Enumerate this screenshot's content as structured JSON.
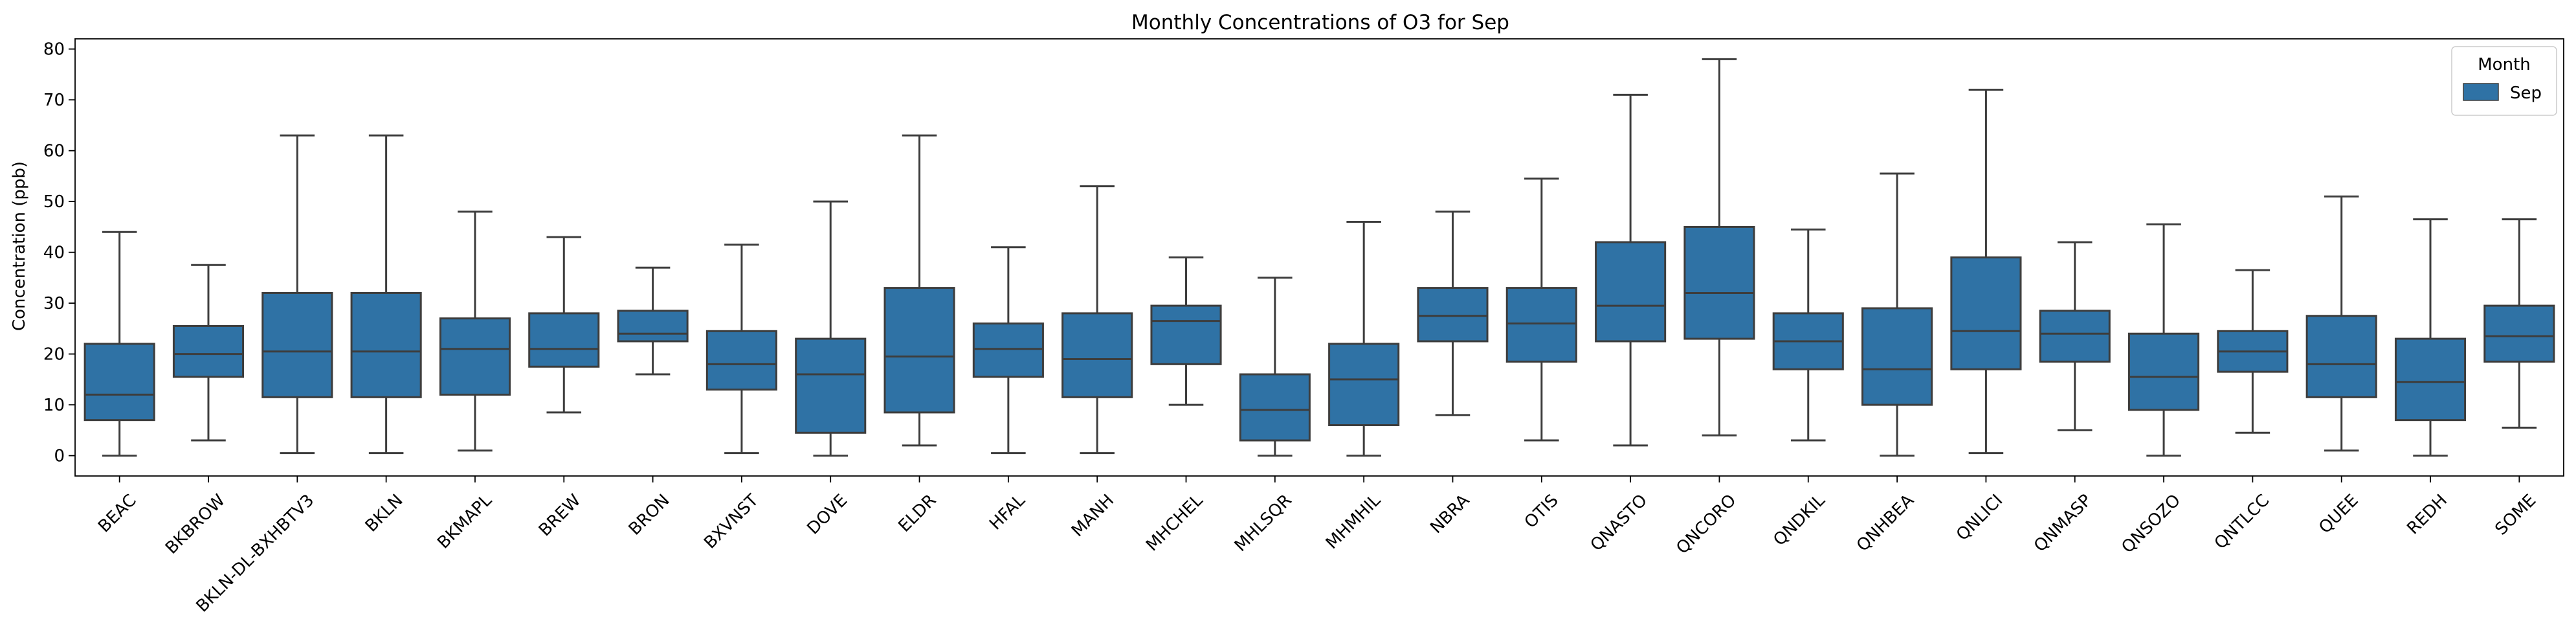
{
  "chart_data": {
    "type": "box",
    "title": "Monthly Concentrations of O3 for Sep",
    "xlabel": "",
    "ylabel": "Concentration (ppb)",
    "ylim": [
      -4,
      82
    ],
    "yticks": [
      0,
      10,
      20,
      30,
      40,
      50,
      60,
      70,
      80
    ],
    "grid": false,
    "legend": {
      "title": "Month",
      "entries": [
        "Sep"
      ],
      "placement": "top-right"
    },
    "colors": {
      "box": "#2f72a5",
      "line": "#3d3d3d",
      "axis": "#000000"
    },
    "categories": [
      "BEAC",
      "BKBROW",
      "BKLN-DL-BXHBTV3",
      "BKLN",
      "BKMAPL",
      "BREW",
      "BRON",
      "BXVNST",
      "DOVE",
      "ELDR",
      "HFAL",
      "MANH",
      "MHCHEL",
      "MHLSQR",
      "MHMHIL",
      "NBRA",
      "OTIS",
      "QNASTO",
      "QNCORO",
      "QNDKIL",
      "QNHBEA",
      "QNLICI",
      "QNMASP",
      "QNSOZO",
      "QNTLCC",
      "QUEE",
      "REDH",
      "SOME"
    ],
    "series": [
      {
        "name": "Sep",
        "boxes": [
          {
            "min": 0,
            "q1": 7,
            "median": 12,
            "q3": 22,
            "max": 44
          },
          {
            "min": 3,
            "q1": 15.5,
            "median": 20,
            "q3": 25.5,
            "max": 37.5
          },
          {
            "min": 0.5,
            "q1": 11.5,
            "median": 20.5,
            "q3": 32,
            "max": 63
          },
          {
            "min": 0.5,
            "q1": 11.5,
            "median": 20.5,
            "q3": 32,
            "max": 63
          },
          {
            "min": 1,
            "q1": 12,
            "median": 21,
            "q3": 27,
            "max": 48
          },
          {
            "min": 8.5,
            "q1": 17.5,
            "median": 21,
            "q3": 28,
            "max": 43
          },
          {
            "min": 16,
            "q1": 22.5,
            "median": 24,
            "q3": 28.5,
            "max": 37
          },
          {
            "min": 0.5,
            "q1": 13,
            "median": 18,
            "q3": 24.5,
            "max": 41.5
          },
          {
            "min": 0,
            "q1": 4.5,
            "median": 16,
            "q3": 23,
            "max": 50
          },
          {
            "min": 2,
            "q1": 8.5,
            "median": 19.5,
            "q3": 33,
            "max": 63
          },
          {
            "min": 0.5,
            "q1": 15.5,
            "median": 21,
            "q3": 26,
            "max": 41
          },
          {
            "min": 0.5,
            "q1": 11.5,
            "median": 19,
            "q3": 28,
            "max": 53
          },
          {
            "min": 10,
            "q1": 18,
            "median": 26.5,
            "q3": 29.5,
            "max": 39
          },
          {
            "min": 0,
            "q1": 3,
            "median": 9,
            "q3": 16,
            "max": 35
          },
          {
            "min": 0,
            "q1": 6,
            "median": 15,
            "q3": 22,
            "max": 46
          },
          {
            "min": 8,
            "q1": 22.5,
            "median": 27.5,
            "q3": 33,
            "max": 48
          },
          {
            "min": 3,
            "q1": 18.5,
            "median": 26,
            "q3": 33,
            "max": 54.5
          },
          {
            "min": 2,
            "q1": 22.5,
            "median": 29.5,
            "q3": 42,
            "max": 71
          },
          {
            "min": 4,
            "q1": 23,
            "median": 32,
            "q3": 45,
            "max": 78
          },
          {
            "min": 3,
            "q1": 17,
            "median": 22.5,
            "q3": 28,
            "max": 44.5
          },
          {
            "min": 0,
            "q1": 10,
            "median": 17,
            "q3": 29,
            "max": 55.5
          },
          {
            "min": 0.5,
            "q1": 17,
            "median": 24.5,
            "q3": 39,
            "max": 72
          },
          {
            "min": 5,
            "q1": 18.5,
            "median": 24,
            "q3": 28.5,
            "max": 42
          },
          {
            "min": 0,
            "q1": 9,
            "median": 15.5,
            "q3": 24,
            "max": 45.5
          },
          {
            "min": 4.5,
            "q1": 16.5,
            "median": 20.5,
            "q3": 24.5,
            "max": 36.5
          },
          {
            "min": 1,
            "q1": 11.5,
            "median": 18,
            "q3": 27.5,
            "max": 51
          },
          {
            "min": 0,
            "q1": 7,
            "median": 14.5,
            "q3": 23,
            "max": 46.5
          },
          {
            "min": 5.5,
            "q1": 18.5,
            "median": 23.5,
            "q3": 29.5,
            "max": 46.5
          }
        ]
      }
    ]
  }
}
